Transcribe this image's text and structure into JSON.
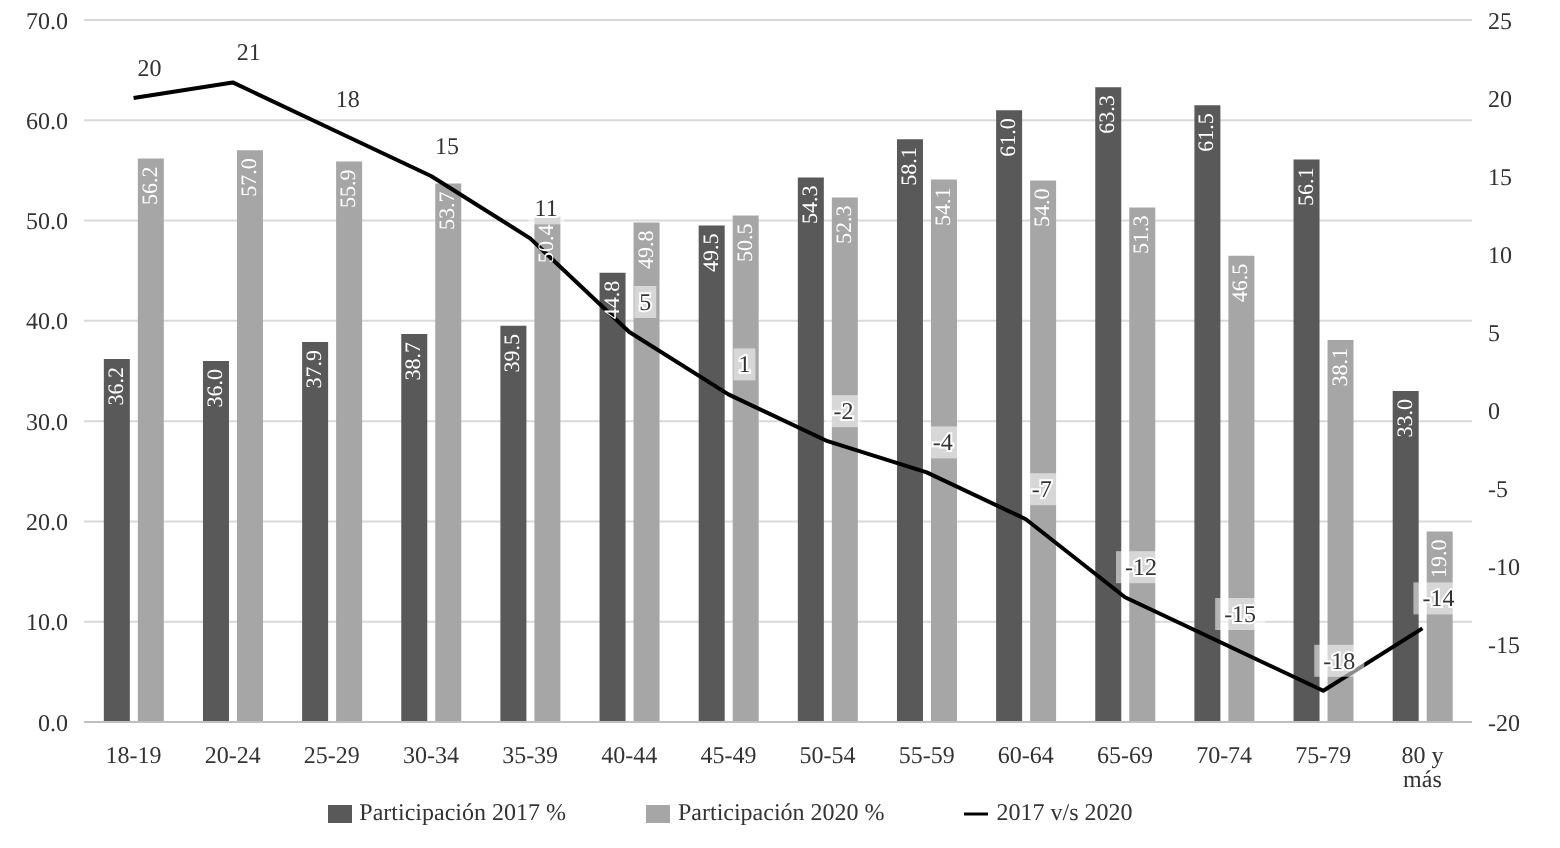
{
  "chart_data": {
    "type": "bar",
    "categories": [
      "18-19",
      "20-24",
      "25-29",
      "30-34",
      "35-39",
      "40-44",
      "45-49",
      "50-54",
      "55-59",
      "60-64",
      "65-69",
      "70-74",
      "75-79",
      "80 y más"
    ],
    "series": [
      {
        "name": "Participación 2017 %",
        "color": "#595959",
        "values": [
          36.2,
          36.0,
          37.9,
          38.7,
          39.5,
          44.8,
          49.5,
          54.3,
          58.1,
          61.0,
          63.3,
          61.5,
          56.1,
          33.0
        ],
        "value_labels": [
          "36.2",
          "36.0",
          "37.9",
          "38.7",
          "39.5",
          "44.8",
          "49.5",
          "54.3",
          "58.1",
          "61.0",
          "63.3",
          "61.5",
          "56.1",
          "33.0"
        ]
      },
      {
        "name": "Participación 2020 %",
        "color": "#a6a6a6",
        "values": [
          56.2,
          57.0,
          55.9,
          53.7,
          50.4,
          49.8,
          50.5,
          52.3,
          54.1,
          54.0,
          51.3,
          46.5,
          38.1,
          19.0
        ],
        "value_labels": [
          "56.2",
          "57.0",
          "55.9",
          "53.7",
          "50.4",
          "49.8",
          "50.5",
          "52.3",
          "54.1",
          "54.0",
          "51.3",
          "46.5",
          "38.1",
          "19.0"
        ]
      },
      {
        "name": "2017 v/s 2020",
        "type": "line",
        "axis": "y2",
        "color": "#000000",
        "values": [
          20,
          21,
          18,
          15,
          11,
          5,
          1,
          -2,
          -4,
          -7,
          -12,
          -15,
          -18,
          -14
        ]
      }
    ],
    "ylim": [
      0,
      70
    ],
    "yticks": [
      {
        "value": 0,
        "label": "0.0"
      },
      {
        "value": 10,
        "label": "10.0"
      },
      {
        "value": 20,
        "label": "20.0"
      },
      {
        "value": 30,
        "label": "30.0"
      },
      {
        "value": 40,
        "label": "40.0"
      },
      {
        "value": 50,
        "label": "50.0"
      },
      {
        "value": 60,
        "label": "60.0"
      },
      {
        "value": 70,
        "label": "70.0"
      }
    ],
    "y2lim": [
      -20,
      25
    ],
    "y2ticks": [
      -20,
      -15,
      -10,
      -5,
      0,
      5,
      10,
      15,
      20,
      25
    ],
    "data_labels": true,
    "grid": "y",
    "legend": "bottom",
    "marker": "none"
  }
}
